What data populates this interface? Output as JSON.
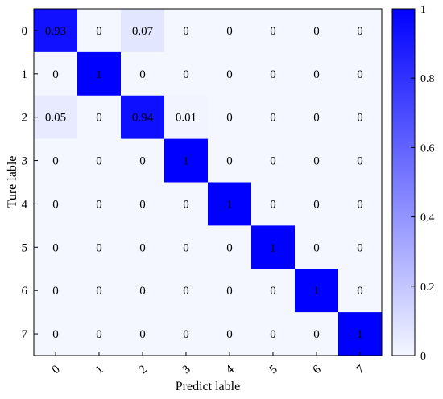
{
  "chart_data": {
    "type": "heatmap",
    "xlabel": "Predict lable",
    "ylabel": "Ture lable",
    "x_categories": [
      "0",
      "1",
      "2",
      "3",
      "4",
      "5",
      "6",
      "7"
    ],
    "y_categories": [
      "0",
      "1",
      "2",
      "3",
      "4",
      "5",
      "6",
      "7"
    ],
    "matrix": [
      [
        0.93,
        0,
        0.07,
        0,
        0,
        0,
        0,
        0
      ],
      [
        0,
        1,
        0,
        0,
        0,
        0,
        0,
        0
      ],
      [
        0.05,
        0,
        0.94,
        0.01,
        0,
        0,
        0,
        0
      ],
      [
        0,
        0,
        0,
        1,
        0,
        0,
        0,
        0
      ],
      [
        0,
        0,
        0,
        0,
        1,
        0,
        0,
        0
      ],
      [
        0,
        0,
        0,
        0,
        0,
        1,
        0,
        0
      ],
      [
        0,
        0,
        0,
        0,
        0,
        0,
        1,
        0
      ],
      [
        0,
        0,
        0,
        0,
        0,
        0,
        0,
        1
      ]
    ],
    "cell_labels": [
      [
        "0.93",
        "0",
        "0.07",
        "0",
        "0",
        "0",
        "0",
        "0"
      ],
      [
        "0",
        "1",
        "0",
        "0",
        "0",
        "0",
        "0",
        "0"
      ],
      [
        "0.05",
        "0",
        "0.94",
        "0.01",
        "0",
        "0",
        "0",
        "0"
      ],
      [
        "0",
        "0",
        "0",
        "1",
        "0",
        "0",
        "0",
        "0"
      ],
      [
        "0",
        "0",
        "0",
        "0",
        "1",
        "0",
        "0",
        "0"
      ],
      [
        "0",
        "0",
        "0",
        "0",
        "0",
        "1",
        "0",
        "0"
      ],
      [
        "0",
        "0",
        "0",
        "0",
        "0",
        "0",
        "1",
        "0"
      ],
      [
        "0",
        "0",
        "0",
        "0",
        "0",
        "0",
        "0",
        "1"
      ]
    ],
    "colorbar": {
      "range": [
        0,
        1
      ],
      "ticks": [
        "0",
        "0.2",
        "0.4",
        "0.6",
        "0.8",
        "1"
      ],
      "low_color": "#f4f7ff",
      "high_color": "#0000ff"
    }
  }
}
